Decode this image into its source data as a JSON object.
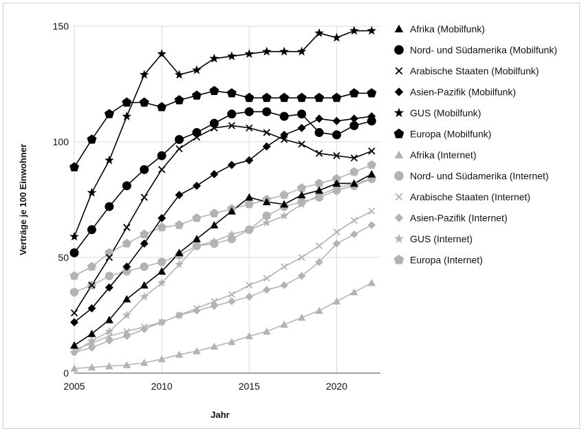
{
  "chart_data": {
    "type": "line",
    "xlabel": "Jahr",
    "ylabel": "Verträge je 100 Einwohner",
    "xlim": [
      2005,
      2022.5
    ],
    "ylim": [
      0,
      150
    ],
    "x_ticks": [
      "2005",
      "2010",
      "2015",
      "2020"
    ],
    "y_ticks": [
      "0",
      "50",
      "100",
      "150"
    ],
    "grid": true,
    "legend_position": "right",
    "x": [
      2005,
      2006,
      2007,
      2008,
      2009,
      2010,
      2011,
      2012,
      2013,
      2014,
      2015,
      2016,
      2017,
      2018,
      2019,
      2020,
      2021,
      2022
    ],
    "series": [
      {
        "name": "Afrika (Mobilfunk)",
        "marker": "triangle",
        "color": "#000000",
        "values": [
          12,
          17,
          23,
          32,
          38,
          44,
          52,
          58,
          64,
          70,
          76,
          74,
          73,
          77,
          79,
          82,
          82,
          86
        ]
      },
      {
        "name": "Nord- und Südamerika (Mobilfunk)",
        "marker": "circle",
        "color": "#000000",
        "values": [
          52,
          62,
          72,
          81,
          88,
          94,
          101,
          104,
          108,
          112,
          113,
          113,
          111,
          112,
          104,
          103,
          107,
          109
        ]
      },
      {
        "name": "Arabische Staaten (Mobilfunk)",
        "marker": "cross",
        "color": "#000000",
        "values": [
          26,
          38,
          50,
          63,
          76,
          88,
          97,
          102,
          106,
          107,
          106,
          104,
          101,
          99,
          95,
          94,
          93,
          96
        ]
      },
      {
        "name": "Asien-Pazifik (Mobilfunk)",
        "marker": "diamond",
        "color": "#000000",
        "values": [
          22,
          28,
          37,
          46,
          56,
          67,
          77,
          81,
          86,
          90,
          92,
          98,
          103,
          106,
          110,
          109,
          110,
          111
        ]
      },
      {
        "name": "GUS (Mobilfunk)",
        "marker": "star",
        "color": "#000000",
        "values": [
          59,
          78,
          92,
          111,
          129,
          138,
          129,
          131,
          136,
          137,
          138,
          139,
          139,
          139,
          147,
          145,
          148,
          148
        ]
      },
      {
        "name": "Europa (Mobilfunk)",
        "marker": "pentagon",
        "color": "#000000",
        "values": [
          89,
          101,
          112,
          117,
          117,
          115,
          118,
          120,
          122,
          121,
          119,
          119,
          119,
          119,
          119,
          119,
          121,
          121
        ]
      },
      {
        "name": "Afrika (Internet)",
        "marker": "triangle",
        "color": "#b3b3b3",
        "values": [
          2,
          2.5,
          3,
          3.5,
          4.5,
          6,
          8,
          9.5,
          11.5,
          13.5,
          16,
          18,
          21,
          24,
          27,
          31,
          35,
          39
        ]
      },
      {
        "name": "Nord- und Südamerika (Internet)",
        "marker": "circle",
        "color": "#b3b3b3",
        "values": [
          35,
          38,
          42,
          44,
          46,
          48,
          51,
          55,
          56,
          58,
          62,
          68,
          72,
          74,
          76,
          79,
          81,
          84
        ]
      },
      {
        "name": "Arabische Staaten (Internet)",
        "marker": "cross",
        "color": "#b3b3b3",
        "values": [
          10,
          13,
          16,
          18,
          20,
          22,
          25,
          28,
          31,
          34,
          38,
          41,
          46,
          50,
          55,
          61,
          66,
          70
        ]
      },
      {
        "name": "Asien-Pazifik (Internet)",
        "marker": "diamond",
        "color": "#b3b3b3",
        "values": [
          9,
          11,
          14,
          16,
          19,
          22,
          25,
          27,
          29,
          31,
          33,
          36,
          38,
          42,
          48,
          56,
          60,
          64
        ]
      },
      {
        "name": "GUS (Internet)",
        "marker": "star",
        "color": "#b3b3b3",
        "values": [
          9,
          14,
          18,
          25,
          33,
          39,
          47,
          55,
          57,
          60,
          62,
          65,
          68,
          73,
          77,
          80,
          82,
          84
        ]
      },
      {
        "name": "Europa (Internet)",
        "marker": "pentagon",
        "color": "#b3b3b3",
        "values": [
          42,
          46,
          52,
          56,
          60,
          63,
          64,
          67,
          69,
          71,
          73,
          75,
          77,
          80,
          82,
          84,
          87,
          90
        ]
      }
    ]
  }
}
